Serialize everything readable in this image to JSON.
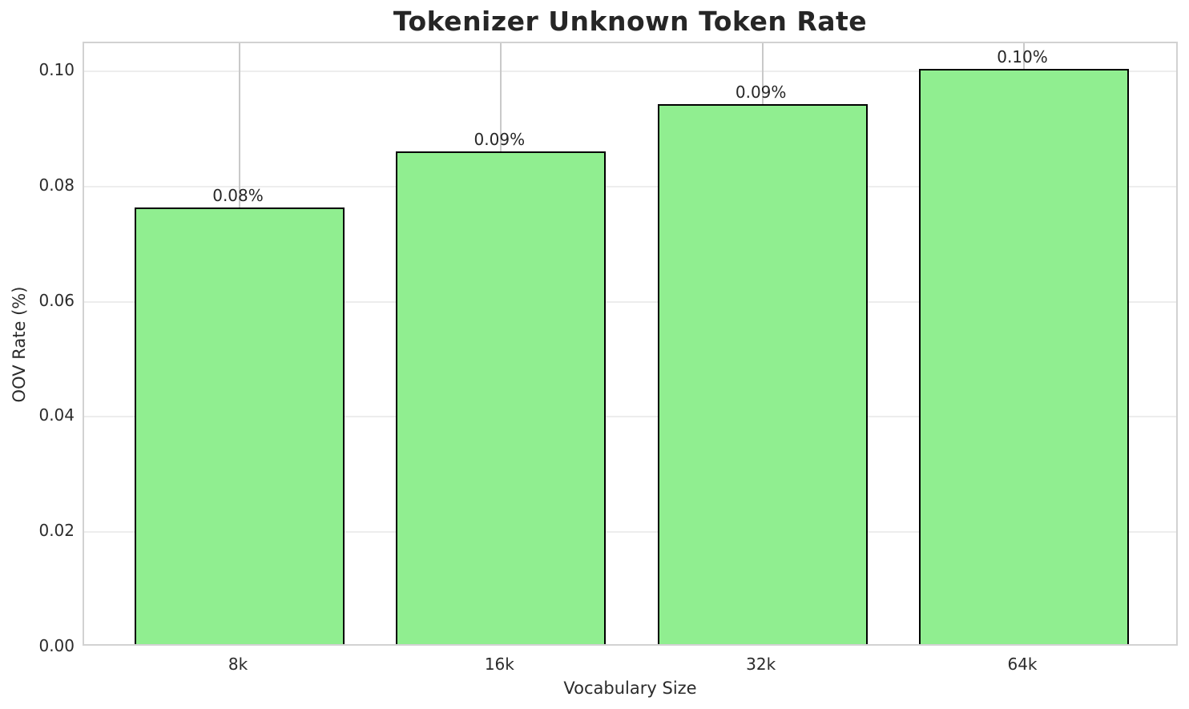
{
  "chart_data": {
    "type": "bar",
    "title": "Tokenizer Unknown Token Rate",
    "xlabel": "Vocabulary Size",
    "ylabel": "OOV Rate (%)",
    "categories": [
      "8k",
      "16k",
      "32k",
      "64k"
    ],
    "values": [
      0.0758,
      0.0855,
      0.0938,
      0.0999
    ],
    "bar_labels": [
      "0.08%",
      "0.09%",
      "0.09%",
      "0.10%"
    ],
    "yticks": [
      0.0,
      0.02,
      0.04,
      0.06,
      0.08,
      0.1
    ],
    "ytick_labels": [
      "0.00",
      "0.02",
      "0.04",
      "0.06",
      "0.08",
      "0.10"
    ],
    "ylim": [
      0,
      0.1049
    ],
    "grid": true,
    "legend_position": "none",
    "colors": {
      "bar_fill": "#90EE90",
      "bar_edge": "#000000",
      "hgrid": "#ededed",
      "vgrid": "#c9c9c9",
      "spine": "#d2d2d2",
      "text": "#2b2b2b",
      "title": "#262626",
      "background": "#ffffff"
    }
  }
}
